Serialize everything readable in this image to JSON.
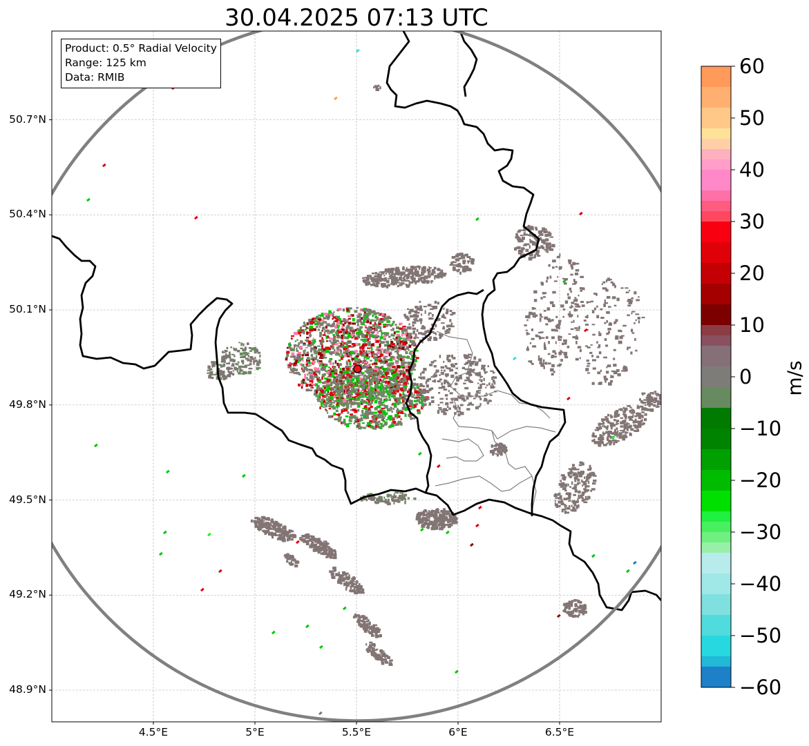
{
  "title": "30.04.2025 07:13 UTC",
  "info_box": {
    "product": "Product: 0.5° Radial Velocity",
    "range": "Range: 125 km",
    "data": "Data: RMIB"
  },
  "map": {
    "lon_range": [
      4.0,
      7.0
    ],
    "lat_range": [
      48.8,
      50.98
    ],
    "grid": true,
    "lat_ticks": [
      {
        "value": 50.7,
        "label": "50.7°N"
      },
      {
        "value": 50.4,
        "label": "50.4°N"
      },
      {
        "value": 50.1,
        "label": "50.1°N"
      },
      {
        "value": 49.8,
        "label": "49.8°N"
      },
      {
        "value": 49.5,
        "label": "49.5°N"
      },
      {
        "value": 49.2,
        "label": "49.2°N"
      },
      {
        "value": 48.9,
        "label": "48.9°N"
      }
    ],
    "lon_ticks": [
      {
        "value": 4.5,
        "label": "4.5°E"
      },
      {
        "value": 5.0,
        "label": "5°E"
      },
      {
        "value": 5.5,
        "label": "5.5°E"
      },
      {
        "value": 6.0,
        "label": "6°E"
      },
      {
        "value": 6.5,
        "label": "6.5°E"
      }
    ],
    "radar_site": {
      "lon": 5.505,
      "lat": 49.914,
      "color": "#e8141b"
    },
    "range_ring_color": "#808080",
    "border_color": "#000000",
    "province_color": "#808080"
  },
  "colorbar": {
    "label": "m/s",
    "min": -60,
    "max": 60,
    "ticks": [
      {
        "value": 60,
        "label": "60"
      },
      {
        "value": 50,
        "label": "50"
      },
      {
        "value": 40,
        "label": "40"
      },
      {
        "value": 30,
        "label": "30"
      },
      {
        "value": 20,
        "label": "20"
      },
      {
        "value": 10,
        "label": "10"
      },
      {
        "value": 0,
        "label": "0"
      },
      {
        "value": -10,
        "label": "−10"
      },
      {
        "value": -20,
        "label": "−20"
      },
      {
        "value": -30,
        "label": "−30"
      },
      {
        "value": -40,
        "label": "−40"
      },
      {
        "value": -50,
        "label": "−50"
      },
      {
        "value": -60,
        "label": "−60"
      }
    ],
    "stops": [
      {
        "from": 56,
        "to": 60,
        "color": "#ff9a5a"
      },
      {
        "from": 52,
        "to": 56,
        "color": "#ffb070"
      },
      {
        "from": 48,
        "to": 52,
        "color": "#ffc888"
      },
      {
        "from": 46,
        "to": 48,
        "color": "#ffe29a"
      },
      {
        "from": 44,
        "to": 46,
        "color": "#ffd0a8"
      },
      {
        "from": 42,
        "to": 44,
        "color": "#ffb0c0"
      },
      {
        "from": 40,
        "to": 42,
        "color": "#ff9ec8"
      },
      {
        "from": 36,
        "to": 40,
        "color": "#ff88c8"
      },
      {
        "from": 34,
        "to": 36,
        "color": "#ff70a8"
      },
      {
        "from": 32,
        "to": 34,
        "color": "#ff5c80"
      },
      {
        "from": 30,
        "to": 32,
        "color": "#ff4860"
      },
      {
        "from": 26,
        "to": 30,
        "color": "#f80010"
      },
      {
        "from": 22,
        "to": 26,
        "color": "#e00008"
      },
      {
        "from": 18,
        "to": 22,
        "color": "#c40004"
      },
      {
        "from": 14,
        "to": 18,
        "color": "#a40000"
      },
      {
        "from": 10,
        "to": 14,
        "color": "#7c0000"
      },
      {
        "from": 8,
        "to": 10,
        "color": "#8c3c44"
      },
      {
        "from": 6,
        "to": 8,
        "color": "#8a5060"
      },
      {
        "from": 2,
        "to": 6,
        "color": "#867078"
      },
      {
        "from": -2,
        "to": 2,
        "color": "#7e7c78"
      },
      {
        "from": -6,
        "to": -2,
        "color": "#688a60"
      },
      {
        "from": -10,
        "to": -6,
        "color": "#007a00"
      },
      {
        "from": -14,
        "to": -10,
        "color": "#008400"
      },
      {
        "from": -18,
        "to": -14,
        "color": "#00a000"
      },
      {
        "from": -22,
        "to": -18,
        "color": "#00bc00"
      },
      {
        "from": -26,
        "to": -22,
        "color": "#00e000"
      },
      {
        "from": -28,
        "to": -26,
        "color": "#20f040"
      },
      {
        "from": -30,
        "to": -28,
        "color": "#48f060"
      },
      {
        "from": -32,
        "to": -30,
        "color": "#70f080"
      },
      {
        "from": -34,
        "to": -32,
        "color": "#98f0a8"
      },
      {
        "from": -38,
        "to": -34,
        "color": "#b8ecec"
      },
      {
        "from": -42,
        "to": -38,
        "color": "#a0e8e8"
      },
      {
        "from": -46,
        "to": -42,
        "color": "#80e0e0"
      },
      {
        "from": -50,
        "to": -46,
        "color": "#50dcdc"
      },
      {
        "from": -54,
        "to": -50,
        "color": "#28d8e0"
      },
      {
        "from": -56,
        "to": -54,
        "color": "#22b8d8"
      },
      {
        "from": -60,
        "to": -56,
        "color": "#1e80c8"
      }
    ]
  },
  "echo_colors": {
    "neutral": "#827574",
    "neutral_green": "#6a8a62",
    "green": "#00c800",
    "bright_green": "#22f022",
    "red": "#e00010",
    "dark_red": "#900000",
    "pink": "#ff7aa8",
    "cyan": "#30e0e0",
    "blue": "#1e80c8",
    "orange": "#ffa040"
  }
}
